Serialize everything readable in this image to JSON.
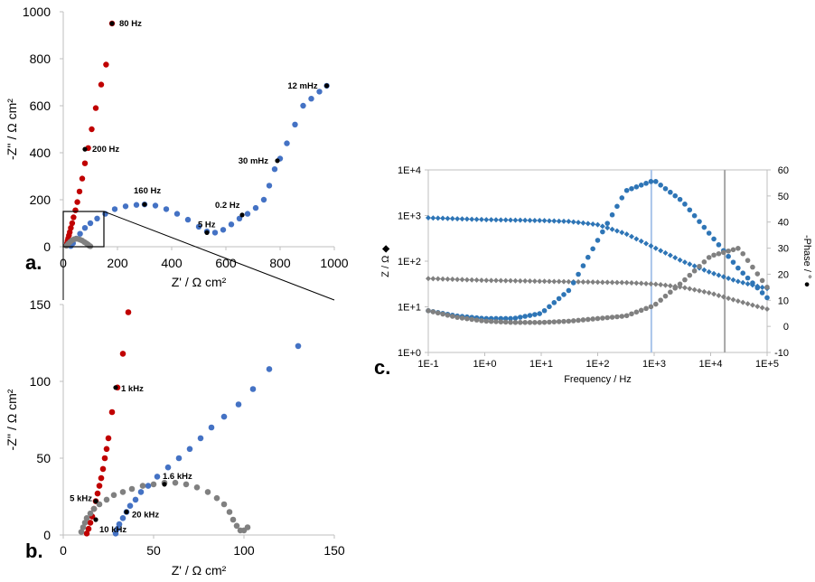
{
  "chart_data": [
    {
      "panel": "a.",
      "type": "scatter",
      "title": "",
      "xlabel": "Z' / Ω cm²",
      "ylabel": "-Z'' / Ω cm²",
      "xlim": [
        0,
        1000
      ],
      "ylim": [
        0,
        1000
      ],
      "xticks": [
        "0",
        "200",
        "400",
        "600",
        "800",
        "1000"
      ],
      "yticks": [
        "0",
        "200",
        "400",
        "600",
        "800",
        "1000"
      ],
      "colors": {
        "red": "#c00000",
        "blue": "#4472c4",
        "gray": "#808080",
        "marker": "#000000"
      },
      "series": [
        {
          "name": "red",
          "x": [
            12,
            14,
            16,
            18,
            21,
            24,
            28,
            33,
            38,
            45,
            52,
            60,
            70,
            80,
            92,
            105,
            120,
            140,
            158,
            180
          ],
          "y": [
            5,
            15,
            25,
            35,
            48,
            62,
            80,
            100,
            125,
            155,
            190,
            235,
            290,
            355,
            420,
            500,
            590,
            690,
            775,
            950
          ]
        },
        {
          "name": "blue",
          "x": [
            28,
            36,
            48,
            62,
            80,
            100,
            125,
            155,
            190,
            230,
            270,
            300,
            340,
            380,
            420,
            460,
            500,
            530,
            560,
            590,
            620,
            650,
            680,
            710,
            740,
            760,
            780,
            800,
            825,
            855,
            885,
            915,
            945,
            972
          ],
          "y": [
            3,
            15,
            35,
            55,
            80,
            100,
            120,
            140,
            160,
            172,
            178,
            180,
            175,
            160,
            140,
            115,
            85,
            65,
            60,
            72,
            95,
            120,
            140,
            165,
            200,
            260,
            330,
            375,
            440,
            520,
            600,
            630,
            660,
            685
          ]
        },
        {
          "name": "gray",
          "x": [
            12,
            18,
            25,
            32,
            40,
            48,
            55,
            62,
            70,
            78,
            86,
            92,
            96,
            100
          ],
          "y": [
            4,
            12,
            20,
            27,
            32,
            34,
            33,
            30,
            26,
            20,
            14,
            9,
            4,
            2
          ]
        }
      ],
      "annotations": [
        {
          "text": "80 Hz",
          "x": 180,
          "y": 950
        },
        {
          "text": "200 Hz",
          "x": 80,
          "y": 415
        },
        {
          "text": "160 Hz",
          "x": 300,
          "y": 180
        },
        {
          "text": "12 mHz",
          "x": 972,
          "y": 685
        },
        {
          "text": "30 mHz",
          "x": 790,
          "y": 366
        },
        {
          "text": "0.2 Hz",
          "x": 660,
          "y": 135
        },
        {
          "text": "5 Hz",
          "x": 530,
          "y": 60
        }
      ]
    },
    {
      "panel": "b.",
      "type": "scatter",
      "title": "",
      "xlabel": "Z' / Ω cm²",
      "ylabel": "-Z'' / Ω cm²",
      "xlim": [
        0,
        150
      ],
      "ylim": [
        0,
        150
      ],
      "xticks": [
        "0",
        "50",
        "100",
        "150"
      ],
      "yticks": [
        "0",
        "50",
        "100",
        "150"
      ],
      "series": [
        {
          "name": "red",
          "x": [
            13,
            14,
            15,
            16,
            17,
            18,
            19,
            20,
            21,
            22,
            23,
            24,
            25,
            27,
            30,
            33,
            36
          ],
          "y": [
            1,
            4,
            8,
            12,
            17,
            22,
            27,
            32,
            37,
            43,
            50,
            56,
            63,
            80,
            96,
            118,
            145
          ]
        },
        {
          "name": "blue",
          "x": [
            29,
            30,
            31,
            33,
            35,
            37,
            40,
            43,
            47,
            52,
            58,
            64,
            70,
            76,
            82,
            89,
            97,
            105,
            114,
            130
          ],
          "y": [
            1,
            4,
            7,
            11,
            15,
            19,
            23,
            28,
            32,
            38,
            44,
            50,
            56,
            63,
            70,
            77,
            85,
            95,
            108,
            123
          ]
        },
        {
          "name": "gray",
          "x": [
            10,
            11,
            12,
            13,
            15,
            17,
            20,
            24,
            28,
            33,
            38,
            44,
            50,
            56,
            62,
            68,
            74,
            80,
            85,
            89,
            92,
            94,
            96,
            98,
            100,
            102
          ],
          "y": [
            2,
            5,
            8,
            11,
            14,
            17,
            20,
            23,
            26,
            28,
            30,
            32,
            33,
            34,
            34,
            33,
            31,
            28,
            24,
            20,
            15,
            10,
            6,
            3,
            3,
            5
          ]
        }
      ],
      "annotations": [
        {
          "text": "1 kHz",
          "x": 29,
          "y": 96
        },
        {
          "text": "5 kHz",
          "x": 18,
          "y": 22
        },
        {
          "text": "1.6 kHz",
          "x": 56,
          "y": 33
        },
        {
          "text": "20 kHz",
          "x": 35,
          "y": 15
        },
        {
          "text": "10 kHz",
          "x": 18,
          "y": 10
        }
      ]
    },
    {
      "panel": "c.",
      "type": "scatter",
      "title": "",
      "xlabel": "Frequency / Hz",
      "ylabel_left": "Z / Ω ◆",
      "ylabel_right": "-Phase / ° ●",
      "xscale": "log",
      "xlim_exp": [
        -1,
        5
      ],
      "y_left_scale": "log",
      "y_left_exp": [
        0,
        4
      ],
      "y_right_lim": [
        -10,
        60
      ],
      "xticks": [
        "1E-1",
        "1E+0",
        "1E+1",
        "1E+2",
        "1E+3",
        "1E+4",
        "1E+5"
      ],
      "yticks_left": [
        "1E+0",
        "1E+1",
        "1E+2",
        "1E+3",
        "1E+4"
      ],
      "yticks_right": [
        "-10",
        "0",
        "10",
        "20",
        "30",
        "40",
        "50",
        "60"
      ],
      "vlines": [
        {
          "freq_exp": 2.95,
          "color": "#a9c4ea"
        },
        {
          "freq_exp": 4.25,
          "color": "#a6a6a6"
        }
      ],
      "series": [
        {
          "name": "blue |Z| (diamond, left axis)",
          "logf": [
            -1.0,
            -0.5,
            0.0,
            0.5,
            1.0,
            1.5,
            2.0,
            2.5,
            3.0,
            3.5,
            4.0,
            4.5,
            5.0
          ],
          "logZ": [
            2.95,
            2.93,
            2.91,
            2.9,
            2.89,
            2.87,
            2.8,
            2.6,
            2.3,
            2.0,
            1.75,
            1.55,
            1.4
          ]
        },
        {
          "name": "gray |Z| (diamond, left axis)",
          "logf": [
            -1.0,
            -0.5,
            0.0,
            0.5,
            1.0,
            1.5,
            2.0,
            2.5,
            3.0,
            3.5,
            4.0,
            4.5,
            5.0
          ],
          "logZ": [
            1.62,
            1.6,
            1.58,
            1.57,
            1.56,
            1.55,
            1.54,
            1.53,
            1.5,
            1.43,
            1.3,
            1.12,
            0.95
          ]
        },
        {
          "name": "blue phase (circle, right axis)",
          "logf": [
            -1.0,
            -0.5,
            0.0,
            0.5,
            1.0,
            1.5,
            2.0,
            2.5,
            3.0,
            3.5,
            4.0,
            4.5,
            5.0
          ],
          "phase": [
            6,
            4,
            3,
            3,
            5,
            14,
            33,
            52,
            56,
            48,
            35,
            22,
            11
          ]
        },
        {
          "name": "gray phase (circle, right axis)",
          "logf": [
            -1.0,
            -0.5,
            0.0,
            0.5,
            1.0,
            1.5,
            2.0,
            2.5,
            3.0,
            3.5,
            4.0,
            4.5,
            5.0
          ],
          "phase": [
            6,
            3.5,
            2,
            1.5,
            1.5,
            2,
            3,
            4,
            8,
            17,
            27,
            30,
            15
          ]
        }
      ]
    }
  ]
}
